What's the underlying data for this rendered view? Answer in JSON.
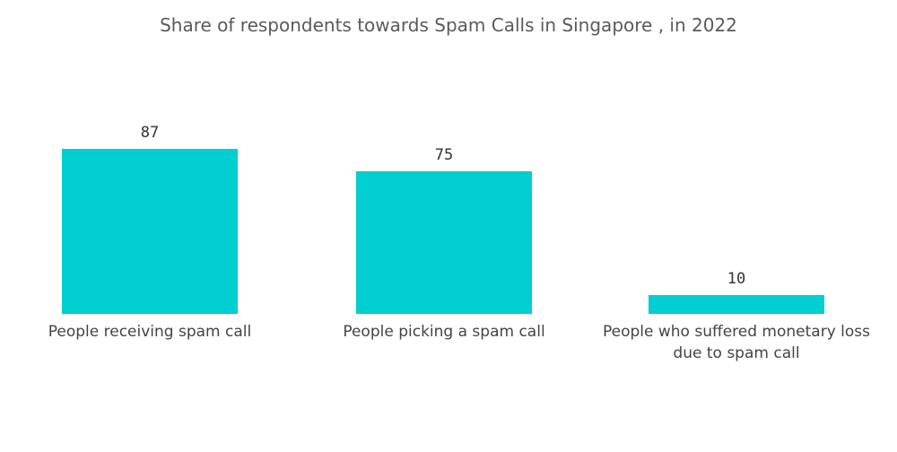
{
  "chart_data": {
    "type": "bar",
    "title": "Share of respondents towards Spam Calls in Singapore , in 2022",
    "categories": [
      "People receiving spam call",
      "People picking a spam call",
      "People who suffered monetary loss due to spam call"
    ],
    "values": [
      87,
      75,
      10
    ],
    "color": "#00ced1"
  }
}
